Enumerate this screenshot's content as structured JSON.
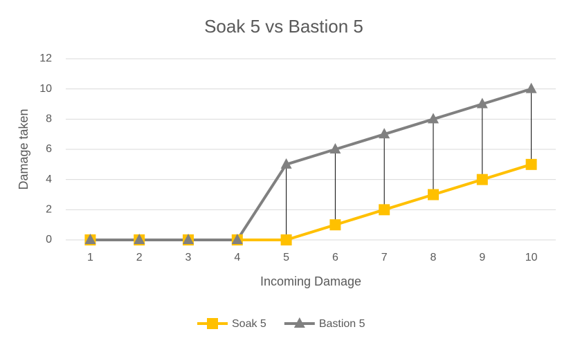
{
  "chart_data": {
    "type": "line",
    "title": "Soak 5 vs Bastion 5",
    "x_label": "Incoming Damage",
    "y_label": "Damage taken",
    "categories": [
      "1",
      "2",
      "3",
      "4",
      "5",
      "6",
      "7",
      "8",
      "9",
      "10"
    ],
    "series": [
      {
        "name": "Soak 5",
        "color": "#ffc000",
        "marker": "square",
        "values": [
          0,
          0,
          0,
          0,
          0,
          1,
          2,
          3,
          4,
          5
        ]
      },
      {
        "name": "Bastion 5",
        "color": "#808080",
        "marker": "triangle",
        "values": [
          0,
          0,
          0,
          0,
          5,
          6,
          7,
          8,
          9,
          10
        ]
      }
    ],
    "ylim": [
      0,
      12
    ],
    "yticks": [
      0,
      2,
      4,
      6,
      8,
      10,
      12
    ],
    "grid": true,
    "high_low_lines": true,
    "legend": "bottom"
  }
}
